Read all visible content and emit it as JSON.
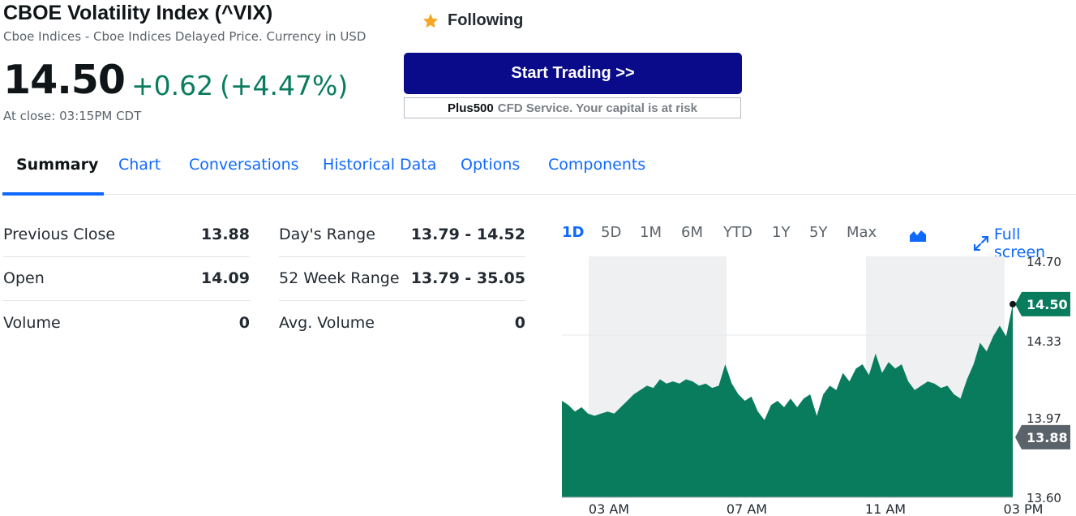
{
  "quote": {
    "title": "CBOE Volatility Index (^VIX)",
    "subtitle": "Cboe Indices - Cboe Indices Delayed Price. Currency in USD",
    "price": "14.50",
    "change": "+0.62",
    "change_pct": "(+4.47%)",
    "close_time": "At close: 03:15PM CDT",
    "positive_color": "#0a7c5e"
  },
  "follow": {
    "label": "Following",
    "icon": "star-icon",
    "icon_color": "#f5a623"
  },
  "ad": {
    "button_label": "Start Trading >>",
    "button_color": "#0a0b8a",
    "brand": "Plus500",
    "note": "CFD Service. Your capital is at risk"
  },
  "tabs": [
    {
      "label": "Summary",
      "active": true
    },
    {
      "label": "Chart",
      "active": false
    },
    {
      "label": "Conversations",
      "active": false
    },
    {
      "label": "Historical Data",
      "active": false
    },
    {
      "label": "Options",
      "active": false
    },
    {
      "label": "Components",
      "active": false
    }
  ],
  "accent_color": "#0f69ff",
  "stats_left": [
    {
      "label": "Previous Close",
      "value": "13.88"
    },
    {
      "label": "Open",
      "value": "14.09"
    },
    {
      "label": "Volume",
      "value": "0"
    }
  ],
  "stats_right": [
    {
      "label": "Day's Range",
      "value": "13.79 - 14.52"
    },
    {
      "label": "52 Week Range",
      "value": "13.79 - 35.05"
    },
    {
      "label": "Avg. Volume",
      "value": "0"
    }
  ],
  "ranges": [
    "1D",
    "5D",
    "1M",
    "6M",
    "YTD",
    "1Y",
    "5Y",
    "Max"
  ],
  "active_range": "1D",
  "chart_type_icon": "area-chart-icon",
  "fullscreen": {
    "label": "Full screen",
    "icon": "expand-icon"
  },
  "chart_data": {
    "type": "area",
    "color": "#0a7c5e",
    "x_ticks": [
      "03 AM",
      "07 AM",
      "11 AM",
      "03 PM"
    ],
    "y_ticks": [
      "14.70",
      "14.33",
      "13.97",
      "13.60"
    ],
    "ylim": [
      13.6,
      14.7
    ],
    "previous_close": "13.88",
    "last_price": "14.50",
    "series": [
      {
        "values": [
          14.05,
          14.03,
          14.0,
          14.02,
          13.99,
          13.98,
          13.99,
          14.0,
          13.99,
          14.02,
          14.05,
          14.08,
          14.1,
          14.12,
          14.11,
          14.15,
          14.13,
          14.14,
          14.13,
          14.15,
          14.14,
          14.12,
          14.13,
          14.11,
          14.12,
          14.22,
          14.13,
          14.08,
          14.05,
          14.07,
          14.0,
          13.96,
          14.03,
          14.05,
          14.02,
          14.06,
          14.02,
          14.06,
          14.08,
          13.98,
          14.08,
          14.12,
          14.1,
          14.18,
          14.14,
          14.2,
          14.22,
          14.17,
          14.27,
          14.18,
          14.23,
          14.2,
          14.22,
          14.14,
          14.1,
          14.12,
          14.14,
          14.13,
          14.11,
          14.12,
          14.08,
          14.06,
          14.15,
          14.22,
          14.32,
          14.28,
          14.35,
          14.4,
          14.35,
          14.5
        ]
      }
    ]
  }
}
